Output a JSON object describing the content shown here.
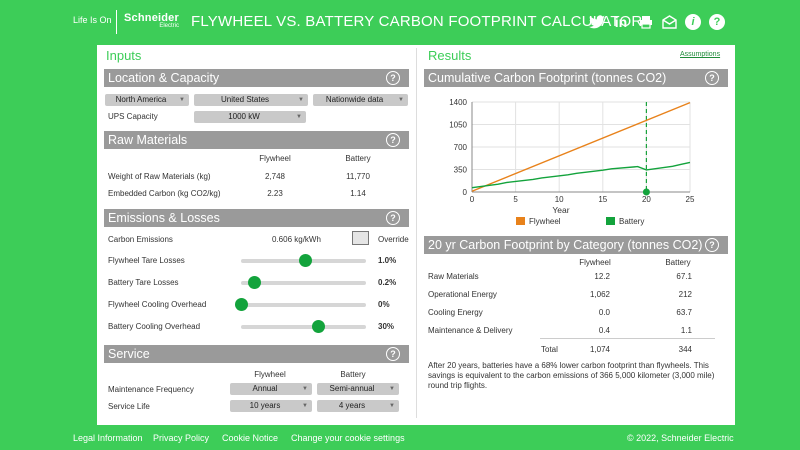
{
  "header": {
    "tagline": "Life Is On",
    "logo_name": "Schneider",
    "logo_sub": "Electric",
    "title": "FLYWHEEL VS. BATTERY CARBON FOOTPRINT CALCULATOR",
    "icons": [
      "twitter-icon",
      "linkedin-icon",
      "print-icon",
      "email-icon",
      "info-icon",
      "help-icon"
    ]
  },
  "colors": {
    "brand_green": "#3dcd58",
    "section_gray": "#9a9a9a",
    "flywheel": "#e8821b",
    "battery": "#13a33c"
  },
  "inputs": {
    "heading": "Inputs",
    "location": {
      "title": "Location & Capacity",
      "region": "North America",
      "country": "United States",
      "data_source": "Nationwide data",
      "ups_label": "UPS Capacity",
      "ups_value": "1000 kW"
    },
    "raw": {
      "title": "Raw Materials",
      "col_flywheel": "Flywheel",
      "col_battery": "Battery",
      "row1_label": "Weight of Raw Materials (kg)",
      "row1_fly": "2,748",
      "row1_bat": "11,770",
      "row2_label": "Embedded Carbon (kg CO2/kg)",
      "row2_fly": "2.23",
      "row2_bat": "1.14"
    },
    "emissions": {
      "title": "Emissions & Losses",
      "carbon_label": "Carbon Emissions",
      "carbon_value": "0.606 kg/kWh",
      "override_label": "Override",
      "sliders": [
        {
          "label": "Flywheel Tare Losses",
          "value": "1.0%",
          "level": 0.4
        },
        {
          "label": "Battery Tare Losses",
          "value": "0.2%",
          "level": 0.08
        },
        {
          "label": "Flywheel Cooling Overhead",
          "value": "0%",
          "level": 0.0
        },
        {
          "label": "Battery Cooling Overhead",
          "value": "30%",
          "level": 0.48
        }
      ]
    },
    "service": {
      "title": "Service",
      "col_flywheel": "Flywheel",
      "col_battery": "Battery",
      "freq_label": "Maintenance Frequency",
      "freq_fly": "Annual",
      "freq_bat": "Semi-annual",
      "life_label": "Service Life",
      "life_fly": "10 years",
      "life_bat": "4 years"
    }
  },
  "results": {
    "heading": "Results",
    "assumptions": "Assumptions",
    "cumulative_title": "Cumulative Carbon Footprint (tonnes CO2)",
    "category_title": "20 yr Carbon Footprint by Category (tonnes CO2)",
    "table": {
      "col_flywheel": "Flywheel",
      "col_battery": "Battery",
      "rows": [
        {
          "label": "Raw Materials",
          "fly": "12.2",
          "bat": "67.1"
        },
        {
          "label": "Operational Energy",
          "fly": "1,062",
          "bat": "212"
        },
        {
          "label": "Cooling Energy",
          "fly": "0.0",
          "bat": "63.7"
        },
        {
          "label": "Maintenance & Delivery",
          "fly": "0.4",
          "bat": "1.1"
        }
      ],
      "total_label": "Total",
      "total_fly": "1,074",
      "total_bat": "344"
    },
    "summary": "After 20 years, batteries have a 68% lower carbon footprint than flywheels. This savings is equivalent to the carbon emissions of 366 5,000 kilometer (3,000 mile) round trip flights."
  },
  "chart_data": {
    "type": "line",
    "xlabel": "Year",
    "ylabel": "",
    "x_ticks": [
      0,
      5,
      10,
      15,
      20,
      25
    ],
    "y_ticks": [
      0,
      350,
      700,
      1050,
      1400
    ],
    "xlim": [
      0,
      25
    ],
    "ylim": [
      0,
      1400
    ],
    "marker_year": 20,
    "series": [
      {
        "name": "Flywheel",
        "color": "#e8821b",
        "x": [
          0,
          25
        ],
        "y": [
          12,
          1390
        ]
      },
      {
        "name": "Battery",
        "color": "#13a33c",
        "x": [
          0,
          3,
          4,
          7,
          8,
          11,
          12,
          15,
          16,
          19,
          20,
          23,
          24,
          25
        ],
        "y": [
          67,
          122,
          148,
          196,
          218,
          267,
          290,
          340,
          360,
          395,
          344,
          400,
          430,
          460
        ]
      }
    ]
  },
  "footer": {
    "links": [
      "Legal Information",
      "Privacy Policy",
      "Cookie Notice",
      "Change your cookie settings"
    ],
    "copyright": "© 2022, Schneider Electric"
  }
}
